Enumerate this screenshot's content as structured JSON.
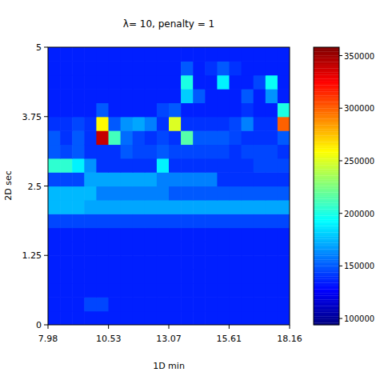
{
  "chart_data": {
    "type": "heatmap",
    "title": "λ= 10, penalty = 1",
    "x_label": "1D min",
    "y_label": "2D sec",
    "xlim": [
      7.98,
      18.16
    ],
    "ylim": [
      0,
      5
    ],
    "xticks": [
      7.98,
      10.53,
      13.07,
      15.61,
      18.16
    ],
    "yticks": [
      0,
      1.25,
      2.5,
      3.75,
      5
    ],
    "x_bins": [
      7.98,
      8.489,
      8.998,
      9.507,
      10.016,
      10.525,
      11.034,
      11.543,
      12.052,
      12.561,
      13.07,
      13.579,
      14.088,
      14.597,
      15.106,
      15.615,
      16.124,
      16.633,
      17.142,
      17.651,
      18.16
    ],
    "y_bins": [
      0,
      0.25,
      0.5,
      0.75,
      1,
      1.25,
      1.5,
      1.75,
      2,
      2.25,
      2.5,
      2.75,
      3,
      3.25,
      3.5,
      3.75,
      4,
      4.25,
      4.5,
      4.75,
      5
    ],
    "cells": [
      [
        135000,
        135000,
        135000,
        135000,
        135000,
        135000,
        135000,
        135000,
        135000,
        135000,
        135000,
        135000,
        135000,
        135000,
        135000,
        135000,
        135000,
        135000,
        135000,
        135000
      ],
      [
        135000,
        135000,
        135000,
        145000,
        145000,
        135000,
        135000,
        135000,
        135000,
        135000,
        135000,
        135000,
        135000,
        135000,
        135000,
        135000,
        135000,
        135000,
        135000,
        135000
      ],
      [
        135000,
        135000,
        135000,
        135000,
        135000,
        135000,
        135000,
        135000,
        135000,
        135000,
        135000,
        135000,
        135000,
        135000,
        135000,
        135000,
        135000,
        135000,
        135000,
        135000
      ],
      [
        135000,
        135000,
        135000,
        135000,
        135000,
        135000,
        135000,
        135000,
        135000,
        135000,
        135000,
        135000,
        135000,
        135000,
        135000,
        135000,
        135000,
        135000,
        135000,
        135000
      ],
      [
        135000,
        135000,
        135000,
        135000,
        135000,
        135000,
        135000,
        135000,
        135000,
        135000,
        135000,
        135000,
        135000,
        135000,
        135000,
        135000,
        135000,
        135000,
        135000,
        135000
      ],
      [
        135000,
        135000,
        135000,
        135000,
        135000,
        135000,
        135000,
        135000,
        135000,
        135000,
        135000,
        135000,
        135000,
        135000,
        135000,
        135000,
        135000,
        135000,
        135000,
        135000
      ],
      [
        135000,
        135000,
        135000,
        135000,
        135000,
        135000,
        135000,
        135000,
        135000,
        135000,
        135000,
        135000,
        135000,
        135000,
        135000,
        135000,
        135000,
        135000,
        135000,
        135000
      ],
      [
        145000,
        145000,
        145000,
        145000,
        145000,
        145000,
        145000,
        145000,
        145000,
        145000,
        145000,
        145000,
        145000,
        145000,
        145000,
        145000,
        145000,
        145000,
        145000,
        145000
      ],
      [
        175000,
        175000,
        175000,
        170000,
        170000,
        170000,
        170000,
        170000,
        170000,
        170000,
        170000,
        170000,
        170000,
        170000,
        170000,
        170000,
        170000,
        170000,
        170000,
        170000
      ],
      [
        175000,
        175000,
        175000,
        175000,
        160000,
        160000,
        160000,
        160000,
        160000,
        160000,
        150000,
        150000,
        150000,
        150000,
        150000,
        150000,
        150000,
        150000,
        150000,
        150000
      ],
      [
        145000,
        145000,
        145000,
        170000,
        170000,
        170000,
        170000,
        170000,
        170000,
        160000,
        160000,
        160000,
        160000,
        160000,
        140000,
        140000,
        140000,
        140000,
        140000,
        140000
      ],
      [
        205000,
        205000,
        190000,
        165000,
        140000,
        140000,
        140000,
        140000,
        140000,
        190000,
        140000,
        140000,
        140000,
        140000,
        140000,
        140000,
        140000,
        145000,
        145000,
        145000
      ],
      [
        150000,
        145000,
        150000,
        140000,
        140000,
        140000,
        150000,
        145000,
        145000,
        150000,
        145000,
        145000,
        145000,
        145000,
        145000,
        140000,
        145000,
        145000,
        145000,
        140000
      ],
      [
        150000,
        140000,
        150000,
        140000,
        340000,
        210000,
        155000,
        145000,
        140000,
        145000,
        140000,
        215000,
        150000,
        150000,
        150000,
        145000,
        140000,
        140000,
        140000,
        150000
      ],
      [
        140000,
        140000,
        145000,
        140000,
        260000,
        150000,
        165000,
        170000,
        160000,
        140000,
        250000,
        140000,
        140000,
        140000,
        140000,
        145000,
        160000,
        140000,
        140000,
        300000
      ],
      [
        135000,
        135000,
        135000,
        135000,
        150000,
        135000,
        135000,
        135000,
        135000,
        145000,
        150000,
        135000,
        135000,
        135000,
        135000,
        135000,
        140000,
        135000,
        135000,
        200000
      ],
      [
        135000,
        135000,
        135000,
        135000,
        135000,
        135000,
        135000,
        135000,
        135000,
        135000,
        135000,
        180000,
        150000,
        135000,
        135000,
        135000,
        150000,
        135000,
        165000,
        135000
      ],
      [
        135000,
        135000,
        135000,
        135000,
        135000,
        135000,
        135000,
        135000,
        135000,
        135000,
        135000,
        200000,
        135000,
        135000,
        190000,
        135000,
        135000,
        145000,
        195000,
        135000
      ],
      [
        135000,
        135000,
        135000,
        135000,
        135000,
        135000,
        135000,
        135000,
        135000,
        135000,
        135000,
        150000,
        135000,
        140000,
        150000,
        140000,
        135000,
        135000,
        135000,
        135000
      ],
      [
        135000,
        135000,
        135000,
        135000,
        135000,
        135000,
        135000,
        135000,
        135000,
        135000,
        135000,
        135000,
        135000,
        135000,
        135000,
        135000,
        135000,
        135000,
        135000,
        135000
      ]
    ],
    "colorbar_lim": [
      94000,
      358000
    ],
    "colorbar_ticks": [
      100000,
      150000,
      200000,
      250000,
      300000,
      350000
    ]
  }
}
